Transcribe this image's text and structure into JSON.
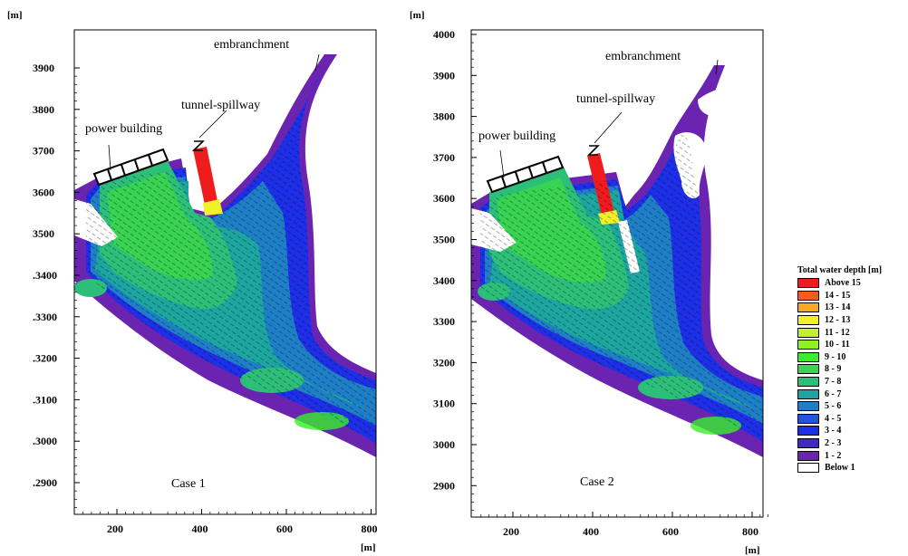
{
  "panels": [
    {
      "case_label": "Case 1",
      "y_unit": "[m]",
      "x_unit": "[m]",
      "y_ticks": [
        "3900",
        "3800",
        "3700",
        "3600",
        "3500",
        ".3400",
        ".3300",
        ".3200",
        ".3100",
        ".3000",
        ".2900"
      ],
      "x_ticks": [
        "200",
        "400",
        "600",
        "800"
      ],
      "annotations": {
        "embranchment": "embranchment",
        "tunnel_spillway": "tunnel-spillway",
        "power_building": "power building"
      }
    },
    {
      "case_label": "Case 2",
      "y_unit": "[m]",
      "x_unit": "[m]",
      "y_ticks": [
        "4000",
        "3900",
        "3800",
        "3700",
        "3600",
        "3500",
        "3400",
        "3300",
        "3200",
        "3100",
        "3000",
        "2900"
      ],
      "x_ticks": [
        "200",
        "400",
        "600",
        "800"
      ],
      "annotations": {
        "embranchment": "embranchment",
        "tunnel_spillway": "tunnel-spillway",
        "power_building": "power building"
      }
    }
  ],
  "legend": {
    "title": "Total water depth [m]",
    "entries": [
      {
        "label": "Above 15",
        "color": "#ee1c1c"
      },
      {
        "label": "14 - 15",
        "color": "#f55a1e"
      },
      {
        "label": "13 - 14",
        "color": "#f9a825"
      },
      {
        "label": "12 - 13",
        "color": "#f3f02a"
      },
      {
        "label": "11 - 12",
        "color": "#c3f02a"
      },
      {
        "label": "10 - 11",
        "color": "#8ff024"
      },
      {
        "label": "9 - 10",
        "color": "#38ef2a"
      },
      {
        "label": "8 -  9",
        "color": "#3bd64b"
      },
      {
        "label": "7 -  8",
        "color": "#2dbf7a"
      },
      {
        "label": "6 -  7",
        "color": "#1da5a0"
      },
      {
        "label": "5 -  6",
        "color": "#1f7fc6"
      },
      {
        "label": "4 -  5",
        "color": "#1f55e0"
      },
      {
        "label": "3 -  4",
        "color": "#1e2fe8"
      },
      {
        "label": "2 -  3",
        "color": "#4526c7"
      },
      {
        "label": "1 -  2",
        "color": "#6a24b0"
      },
      {
        "label": "Below  1",
        "color": "#ffffff"
      }
    ]
  },
  "colors": {
    "vectors": "#000000",
    "frame": "#000000",
    "dry": "#ffffff"
  }
}
